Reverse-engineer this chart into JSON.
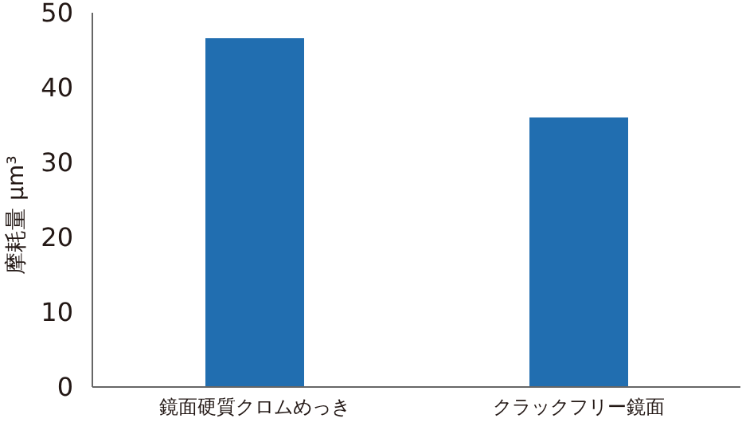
{
  "chart_data": {
    "type": "bar",
    "ylabel": "摩耗量 μm³",
    "categories": [
      "鏡面硬質クロムめっき",
      "クラックフリー鏡面"
    ],
    "values": [
      46.6,
      36
    ],
    "color": "#216eb0",
    "ylim": [
      0,
      50
    ],
    "yticks": [
      0,
      10,
      20,
      30,
      40,
      50
    ],
    "grid": false
  }
}
